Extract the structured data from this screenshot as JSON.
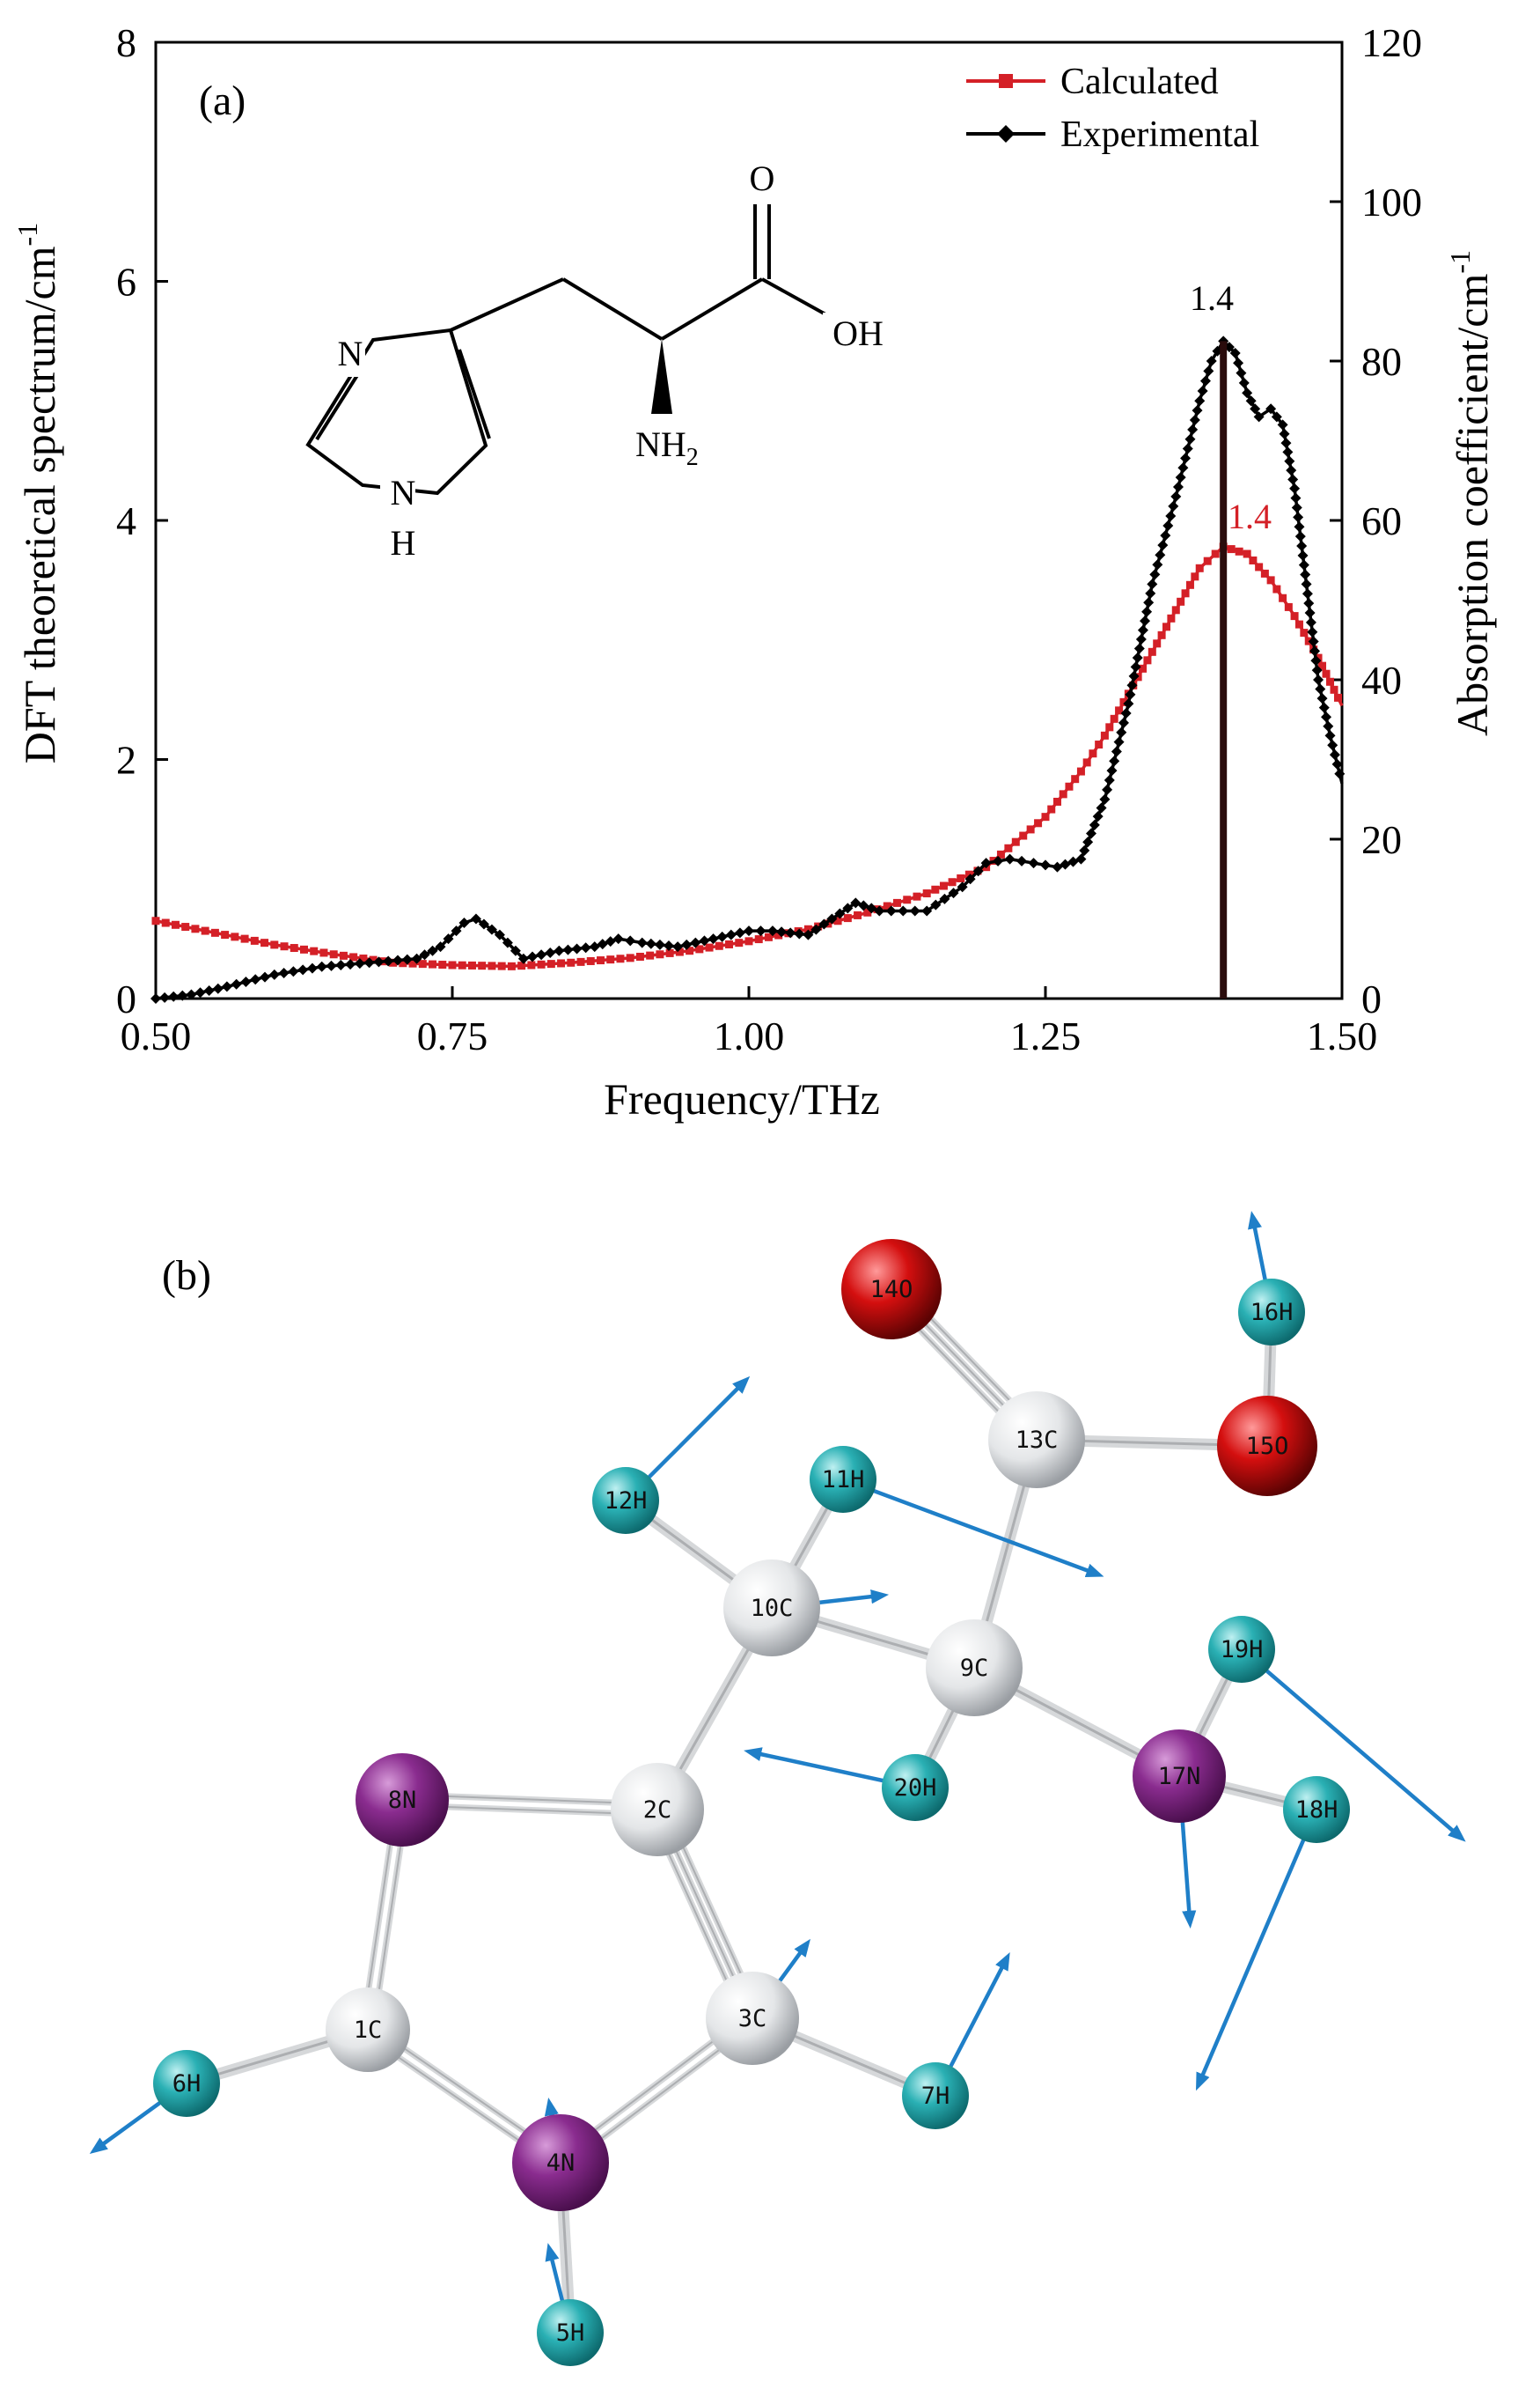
{
  "panel_a": {
    "label": "(a)"
  },
  "panel_b": {
    "label": "(b)"
  },
  "colors": {
    "calculated": "#d42027",
    "experimental": "#000000",
    "atom_H": "#2ab0b4",
    "atom_C": "#e8eaec",
    "atom_N": "#8a2c8f",
    "atom_O": "#d40f0f",
    "vector": "#1f7fc8"
  },
  "chart_data": {
    "type": "line",
    "xlabel": "Frequency/THz",
    "ylabel_left": "DFT theoretical spectrum/cm",
    "ylabel_right": "Absorption coefficient/cm",
    "ylabel_superscript": "-1",
    "xlim": [
      0.5,
      1.5
    ],
    "ylim_left": [
      0,
      8
    ],
    "ylim_right": [
      0,
      120
    ],
    "x_ticks": [
      "0.50",
      "0.75",
      "1.00",
      "1.25",
      "1.50"
    ],
    "y_left_ticks": [
      "0",
      "2",
      "4",
      "6",
      "8"
    ],
    "y_right_ticks": [
      "0",
      "20",
      "40",
      "60",
      "80",
      "100",
      "120"
    ],
    "legend_position": "top-right",
    "grid": false,
    "series": [
      {
        "name": "Calculated",
        "axis": "left",
        "marker": "square",
        "x": [
          0.5,
          0.55,
          0.6,
          0.65,
          0.7,
          0.75,
          0.8,
          0.85,
          0.9,
          0.95,
          1.0,
          1.05,
          1.1,
          1.15,
          1.2,
          1.25,
          1.28,
          1.3,
          1.32,
          1.34,
          1.36,
          1.38,
          1.4,
          1.42,
          1.44,
          1.46,
          1.48,
          1.5
        ],
        "y": [
          0.65,
          0.55,
          0.45,
          0.37,
          0.3,
          0.28,
          0.27,
          0.3,
          0.34,
          0.4,
          0.48,
          0.58,
          0.72,
          0.88,
          1.1,
          1.52,
          1.9,
          2.2,
          2.55,
          2.9,
          3.25,
          3.6,
          3.78,
          3.72,
          3.5,
          3.2,
          2.85,
          2.45
        ]
      },
      {
        "name": "Experimental",
        "axis": "right",
        "marker": "diamond",
        "x": [
          0.5,
          0.53,
          0.56,
          0.6,
          0.64,
          0.68,
          0.72,
          0.74,
          0.76,
          0.77,
          0.79,
          0.81,
          0.84,
          0.87,
          0.89,
          0.91,
          0.94,
          0.97,
          1.0,
          1.02,
          1.05,
          1.07,
          1.09,
          1.11,
          1.13,
          1.15,
          1.18,
          1.2,
          1.22,
          1.24,
          1.26,
          1.28,
          1.3,
          1.32,
          1.34,
          1.36,
          1.38,
          1.39,
          1.4,
          1.41,
          1.42,
          1.43,
          1.44,
          1.45,
          1.46,
          1.47,
          1.48,
          1.49,
          1.5
        ],
        "y": [
          0,
          0.5,
          1.5,
          3,
          4,
          4.5,
          5,
          6.5,
          9.5,
          10,
          8,
          5,
          6,
          6.5,
          7.5,
          7,
          6.5,
          7.5,
          8.5,
          8.5,
          8,
          10,
          12,
          11,
          11,
          11,
          14,
          17,
          17.5,
          17,
          16.5,
          17.5,
          25,
          37,
          52,
          63,
          75,
          80,
          82.5,
          81,
          76,
          73,
          74,
          72,
          64,
          52,
          40,
          33,
          27
        ]
      }
    ],
    "annotations": [
      {
        "text": "1.4",
        "series": "Experimental",
        "x": 1.4,
        "y": 82.5
      },
      {
        "text": "1.4",
        "series": "Calculated",
        "x": 1.4,
        "y": 3.78
      }
    ],
    "stick": {
      "x": 1.4,
      "height": 5.5
    },
    "structure_labels": {
      "O": "O",
      "OH": "OH",
      "N": "N",
      "NH": "N",
      "H": "H",
      "NH2_main": "NH",
      "NH2_sub": "2"
    }
  },
  "molecule": {
    "atoms": [
      {
        "id": "1C",
        "element": "C"
      },
      {
        "id": "2C",
        "element": "C"
      },
      {
        "id": "3C",
        "element": "C"
      },
      {
        "id": "4N",
        "element": "N"
      },
      {
        "id": "5H",
        "element": "H"
      },
      {
        "id": "6H",
        "element": "H"
      },
      {
        "id": "7H",
        "element": "H"
      },
      {
        "id": "8N",
        "element": "N"
      },
      {
        "id": "9C",
        "element": "C"
      },
      {
        "id": "10C",
        "element": "C"
      },
      {
        "id": "11H",
        "element": "H"
      },
      {
        "id": "12H",
        "element": "H"
      },
      {
        "id": "13C",
        "element": "C"
      },
      {
        "id": "14O",
        "element": "O"
      },
      {
        "id": "15O",
        "element": "O"
      },
      {
        "id": "16H",
        "element": "H"
      },
      {
        "id": "17N",
        "element": "N"
      },
      {
        "id": "18H",
        "element": "H"
      },
      {
        "id": "19H",
        "element": "H"
      },
      {
        "id": "20H",
        "element": "H"
      }
    ]
  }
}
